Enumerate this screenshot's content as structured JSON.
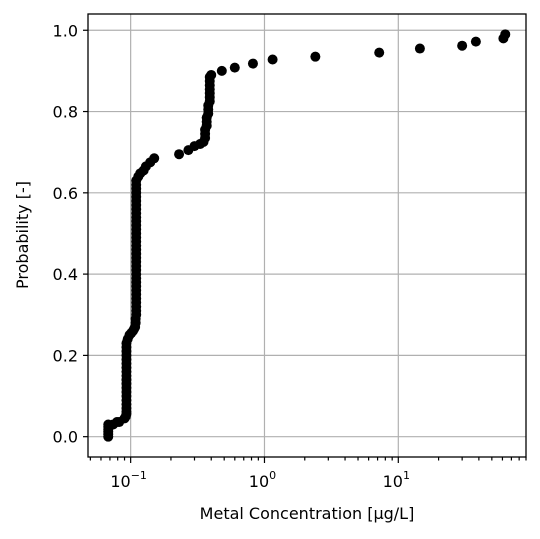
{
  "chart_data": {
    "type": "scatter",
    "xscale": "log",
    "xlim": [
      0.048,
      90
    ],
    "ylim": [
      -0.05,
      1.04
    ],
    "grid": true,
    "xlabel": "Metal Concentration [µg/L]",
    "ylabel": "Probability [-]",
    "x_major_ticks": [
      0.1,
      1,
      10
    ],
    "x_tick_labels": [
      {
        "base": "10",
        "exp": "−1"
      },
      {
        "base": "10",
        "exp": "0"
      },
      {
        "base": "10",
        "exp": "1"
      }
    ],
    "y_ticks": [
      0.0,
      0.2,
      0.4,
      0.6,
      0.8,
      1.0
    ],
    "y_tick_labels": [
      "0.0",
      "0.2",
      "0.4",
      "0.6",
      "0.8",
      "1.0"
    ],
    "marker_color": "#000000",
    "points": [
      [
        0.068,
        0.0
      ],
      [
        0.068,
        0.006
      ],
      [
        0.068,
        0.012
      ],
      [
        0.068,
        0.018
      ],
      [
        0.068,
        0.024
      ],
      [
        0.068,
        0.03
      ],
      [
        0.074,
        0.03
      ],
      [
        0.079,
        0.036
      ],
      [
        0.082,
        0.036
      ],
      [
        0.09,
        0.045
      ],
      [
        0.092,
        0.05
      ],
      [
        0.093,
        0.056
      ],
      [
        0.093,
        0.062
      ],
      [
        0.093,
        0.07
      ],
      [
        0.093,
        0.08
      ],
      [
        0.093,
        0.09
      ],
      [
        0.093,
        0.1
      ],
      [
        0.093,
        0.11
      ],
      [
        0.093,
        0.12
      ],
      [
        0.093,
        0.13
      ],
      [
        0.093,
        0.14
      ],
      [
        0.093,
        0.15
      ],
      [
        0.093,
        0.16
      ],
      [
        0.093,
        0.17
      ],
      [
        0.093,
        0.18
      ],
      [
        0.093,
        0.19
      ],
      [
        0.093,
        0.2
      ],
      [
        0.093,
        0.21
      ],
      [
        0.093,
        0.22
      ],
      [
        0.093,
        0.23
      ],
      [
        0.095,
        0.24
      ],
      [
        0.098,
        0.25
      ],
      [
        0.101,
        0.255
      ],
      [
        0.104,
        0.26
      ],
      [
        0.106,
        0.265
      ],
      [
        0.108,
        0.27
      ],
      [
        0.109,
        0.28
      ],
      [
        0.109,
        0.29
      ],
      [
        0.11,
        0.3
      ],
      [
        0.11,
        0.31
      ],
      [
        0.11,
        0.32
      ],
      [
        0.11,
        0.33
      ],
      [
        0.11,
        0.34
      ],
      [
        0.11,
        0.35
      ],
      [
        0.11,
        0.36
      ],
      [
        0.11,
        0.37
      ],
      [
        0.11,
        0.38
      ],
      [
        0.11,
        0.39
      ],
      [
        0.11,
        0.4
      ],
      [
        0.11,
        0.41
      ],
      [
        0.11,
        0.42
      ],
      [
        0.11,
        0.43
      ],
      [
        0.11,
        0.44
      ],
      [
        0.11,
        0.45
      ],
      [
        0.11,
        0.46
      ],
      [
        0.11,
        0.47
      ],
      [
        0.11,
        0.48
      ],
      [
        0.11,
        0.49
      ],
      [
        0.11,
        0.5
      ],
      [
        0.11,
        0.51
      ],
      [
        0.11,
        0.52
      ],
      [
        0.11,
        0.53
      ],
      [
        0.11,
        0.54
      ],
      [
        0.11,
        0.55
      ],
      [
        0.11,
        0.56
      ],
      [
        0.11,
        0.57
      ],
      [
        0.11,
        0.58
      ],
      [
        0.11,
        0.59
      ],
      [
        0.11,
        0.6
      ],
      [
        0.11,
        0.61
      ],
      [
        0.11,
        0.62
      ],
      [
        0.11,
        0.63
      ],
      [
        0.114,
        0.64
      ],
      [
        0.118,
        0.648
      ],
      [
        0.125,
        0.655
      ],
      [
        0.13,
        0.665
      ],
      [
        0.14,
        0.675
      ],
      [
        0.15,
        0.685
      ],
      [
        0.23,
        0.695
      ],
      [
        0.27,
        0.705
      ],
      [
        0.3,
        0.715
      ],
      [
        0.33,
        0.72
      ],
      [
        0.35,
        0.725
      ],
      [
        0.36,
        0.735
      ],
      [
        0.36,
        0.745
      ],
      [
        0.36,
        0.755
      ],
      [
        0.37,
        0.765
      ],
      [
        0.37,
        0.775
      ],
      [
        0.37,
        0.785
      ],
      [
        0.38,
        0.795
      ],
      [
        0.38,
        0.805
      ],
      [
        0.38,
        0.815
      ],
      [
        0.39,
        0.825
      ],
      [
        0.39,
        0.835
      ],
      [
        0.39,
        0.845
      ],
      [
        0.39,
        0.855
      ],
      [
        0.39,
        0.865
      ],
      [
        0.39,
        0.875
      ],
      [
        0.39,
        0.885
      ],
      [
        0.4,
        0.89
      ],
      [
        0.48,
        0.9
      ],
      [
        0.6,
        0.908
      ],
      [
        0.82,
        0.918
      ],
      [
        1.15,
        0.928
      ],
      [
        2.4,
        0.935
      ],
      [
        7.2,
        0.945
      ],
      [
        14.5,
        0.955
      ],
      [
        30,
        0.962
      ],
      [
        38,
        0.972
      ],
      [
        61,
        0.98
      ],
      [
        63,
        0.99
      ]
    ]
  }
}
